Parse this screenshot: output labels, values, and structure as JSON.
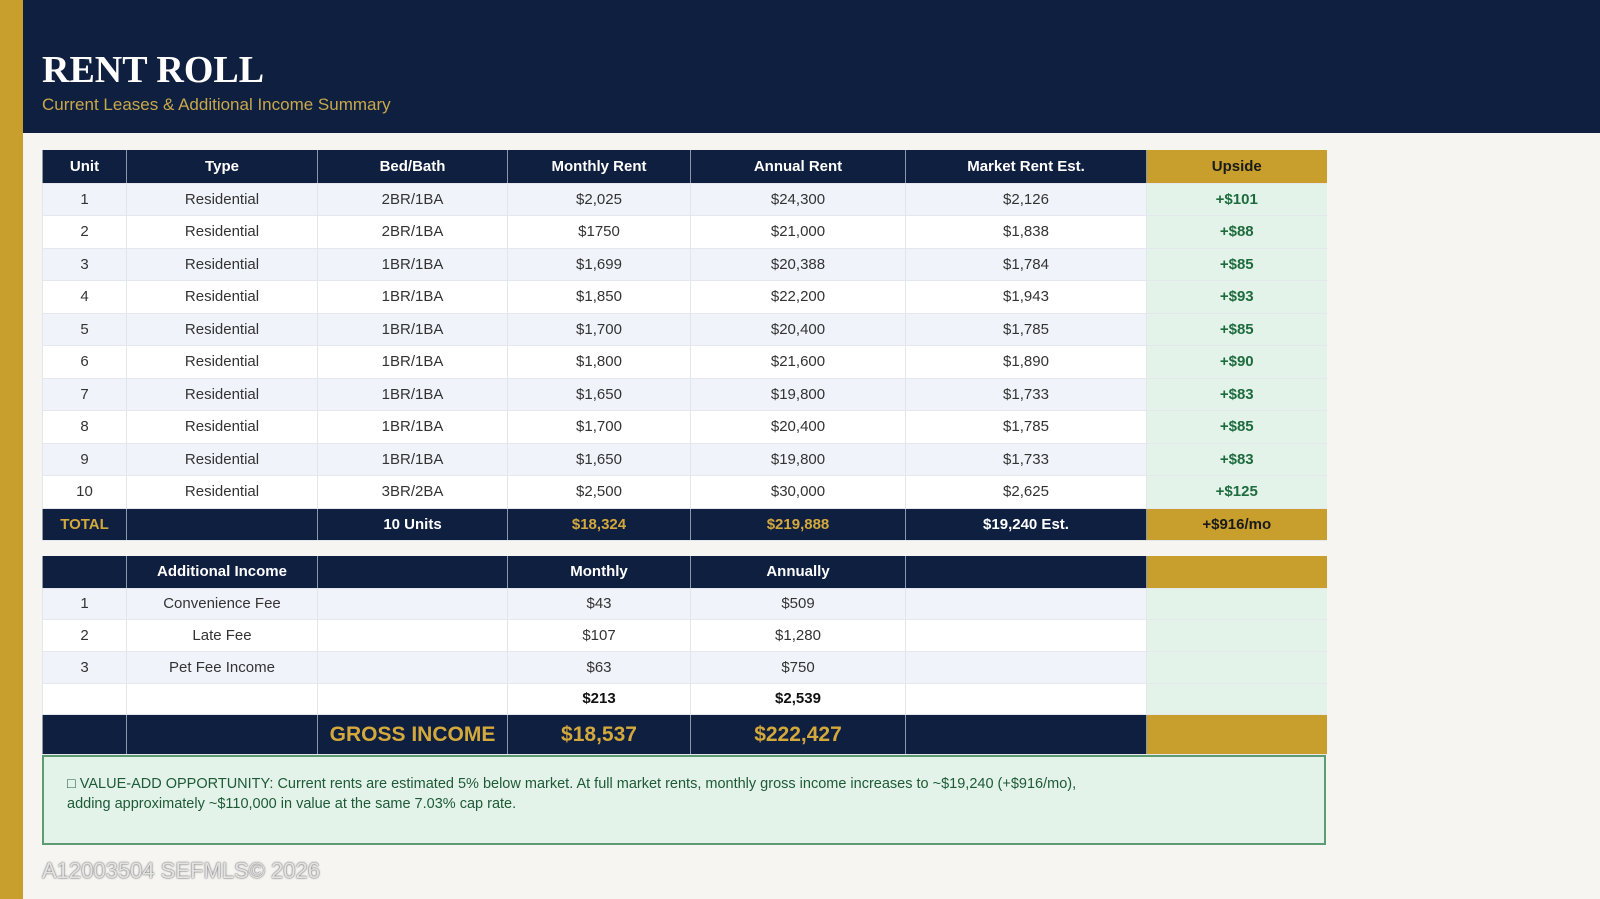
{
  "header": {
    "title": "RENT ROLL",
    "subtitle": "Current Leases & Additional Income Summary"
  },
  "rent_table": {
    "columns": [
      "Unit",
      "Type",
      "Bed/Bath",
      "Monthly Rent",
      "Annual Rent",
      "Market Rent Est.",
      "Upside"
    ],
    "rows": [
      [
        "1",
        "Residential",
        "2BR/1BA",
        "$2,025",
        "$24,300",
        "$2,126",
        "+$101"
      ],
      [
        "2",
        "Residential",
        "2BR/1BA",
        "$1750",
        "$21,000",
        "$1,838",
        "+$88"
      ],
      [
        "3",
        "Residential",
        "1BR/1BA",
        "$1,699",
        "$20,388",
        "$1,784",
        "+$85"
      ],
      [
        "4",
        "Residential",
        "1BR/1BA",
        "$1,850",
        "$22,200",
        "$1,943",
        "+$93"
      ],
      [
        "5",
        "Residential",
        "1BR/1BA",
        "$1,700",
        "$20,400",
        "$1,785",
        "+$85"
      ],
      [
        "6",
        "Residential",
        "1BR/1BA",
        "$1,800",
        "$21,600",
        "$1,890",
        "+$90"
      ],
      [
        "7",
        "Residential",
        "1BR/1BA",
        "$1,650",
        "$19,800",
        "$1,733",
        "+$83"
      ],
      [
        "8",
        "Residential",
        "1BR/1BA",
        "$1,700",
        "$20,400",
        "$1,785",
        "+$85"
      ],
      [
        "9",
        "Residential",
        "1BR/1BA",
        "$1,650",
        "$19,800",
        "$1,733",
        "+$83"
      ],
      [
        "10",
        "Residential",
        "3BR/2BA",
        "$2,500",
        "$30,000",
        "$2,625",
        "+$125"
      ]
    ],
    "total": {
      "label": "TOTAL",
      "units": "10 Units",
      "monthly": "$18,324",
      "annual": "$219,888",
      "market": "$19,240 Est.",
      "upside": "+$916/mo"
    }
  },
  "additional_income": {
    "columns": [
      "Additional Income",
      "Monthly",
      "Annually"
    ],
    "rows": [
      [
        "1",
        "Convenience Fee",
        "$43",
        "$509"
      ],
      [
        "2",
        "Late Fee",
        "$107",
        "$1,280"
      ],
      [
        "3",
        "Pet Fee Income",
        "$63",
        "$750"
      ]
    ],
    "subtotal": {
      "monthly": "$213",
      "annually": "$2,539"
    },
    "gross": {
      "label": "GROSS INCOME",
      "monthly": "$18,537",
      "annually": "$222,427"
    }
  },
  "note": {
    "line1": "□ VALUE-ADD OPPORTUNITY: Current rents are estimated 5% below market. At full market rents, monthly gross income increases to ~$19,240 (+$916/mo),",
    "line2": "adding approximately ~$110,000 in value at the same 7.03% cap rate."
  },
  "watermark": "A12003504  SEFMLS© 2026",
  "colors": {
    "navy": "#0f1f40",
    "gold": "#c89f2c",
    "green": "#1e6b3d",
    "mint": "#e3f3ea"
  }
}
